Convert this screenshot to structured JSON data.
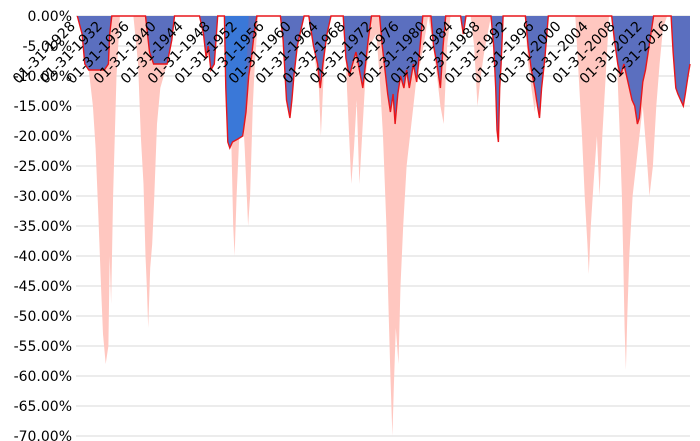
{
  "chart_data": {
    "type": "area",
    "title": "",
    "xlabel": "",
    "ylabel": "",
    "y_tick_labels": [
      "0.00%",
      "-5.00%",
      "-10.00%",
      "-15.00%",
      "-20.00%",
      "-25.00%",
      "-30.00%",
      "-35.00%",
      "-40.00%",
      "-45.00%",
      "-50.00%",
      "-55.00%",
      "-60.00%",
      "-65.00%",
      "-70.00%"
    ],
    "y_ticks": [
      0,
      -5,
      -10,
      -15,
      -20,
      -25,
      -30,
      -35,
      -40,
      -45,
      -50,
      -55,
      -60,
      -65,
      -70
    ],
    "ylim": [
      -70,
      0
    ],
    "xlim": [
      1928.0,
      2019.0
    ],
    "grid": true,
    "legend": "none",
    "x_tick_labels": [
      "01-31-1928",
      "01-31-1932",
      "01-31-1936",
      "01-31-1940",
      "01-31-1944",
      "01-31-1948",
      "01-31-1952",
      "01-31-1956",
      "01-31-1960",
      "01-31-1964",
      "01-31-1968",
      "01-31-1972",
      "01-31-1976",
      "01-31-1980",
      "01-31-1984",
      "01-31-1988",
      "01-31-1992",
      "01-31-1996",
      "01-31-2000",
      "01-31-2004",
      "01-31-2008",
      "01-31-2012",
      "01-31-2016"
    ],
    "x_tick_years": [
      1928,
      1932,
      1936,
      1940,
      1944,
      1948,
      1952,
      1956,
      1960,
      1964,
      1968,
      1972,
      1976,
      1980,
      1984,
      1988,
      1992,
      1996,
      2000,
      2004,
      2008,
      2012,
      2016
    ],
    "series": [
      {
        "color": "#ffc7c0",
        "points": [
          [
            1928.5,
            0
          ],
          [
            1929.2,
            0
          ],
          [
            1929.8,
            -8
          ],
          [
            1930.5,
            -15
          ],
          [
            1930.9,
            -22
          ],
          [
            1931.3,
            -33
          ],
          [
            1931.7,
            -45
          ],
          [
            1932.0,
            -53
          ],
          [
            1932.4,
            -58
          ],
          [
            1932.8,
            -55
          ],
          [
            1933.0,
            -40
          ],
          [
            1933.2,
            -48
          ],
          [
            1933.5,
            -30
          ],
          [
            1934.0,
            -10
          ],
          [
            1934.5,
            0
          ],
          [
            1936.5,
            0
          ],
          [
            1937.2,
            -8
          ],
          [
            1937.6,
            -20
          ],
          [
            1938.0,
            -28
          ],
          [
            1938.3,
            -40
          ],
          [
            1938.5,
            -45
          ],
          [
            1938.7,
            -52
          ],
          [
            1939.0,
            -42
          ],
          [
            1939.3,
            -38
          ],
          [
            1939.6,
            -30
          ],
          [
            1940.0,
            -18
          ],
          [
            1940.5,
            -12
          ],
          [
            1941.0,
            -10
          ],
          [
            1941.5,
            -8
          ],
          [
            1942.0,
            0
          ],
          [
            1950.0,
            0
          ],
          [
            1950.5,
            -5
          ],
          [
            1951.0,
            -20
          ],
          [
            1951.3,
            -35
          ],
          [
            1951.5,
            -40
          ],
          [
            1951.8,
            -30
          ],
          [
            1952.2,
            -20
          ],
          [
            1952.5,
            -12
          ],
          [
            1953.0,
            -22
          ],
          [
            1953.5,
            -35
          ],
          [
            1953.8,
            -30
          ],
          [
            1954.2,
            -15
          ],
          [
            1954.5,
            -8
          ],
          [
            1955.0,
            0
          ],
          [
            1958.2,
            0
          ],
          [
            1958.8,
            -5
          ],
          [
            1959.3,
            -10
          ],
          [
            1959.8,
            -3
          ],
          [
            1960.3,
            0
          ],
          [
            1963.0,
            0
          ],
          [
            1963.5,
            -8
          ],
          [
            1964.0,
            -12
          ],
          [
            1964.3,
            -20
          ],
          [
            1964.7,
            -10
          ],
          [
            1965.3,
            0
          ],
          [
            1967.6,
            0
          ],
          [
            1968.0,
            -8
          ],
          [
            1968.4,
            -18
          ],
          [
            1968.8,
            -28
          ],
          [
            1969.2,
            -22
          ],
          [
            1969.6,
            -14
          ],
          [
            1970.0,
            -28
          ],
          [
            1970.4,
            -20
          ],
          [
            1970.9,
            -10
          ],
          [
            1971.5,
            -5
          ],
          [
            1972.5,
            -3
          ],
          [
            1973.0,
            -10
          ],
          [
            1973.5,
            -20
          ],
          [
            1974.0,
            -35
          ],
          [
            1974.3,
            -48
          ],
          [
            1974.6,
            -60
          ],
          [
            1974.9,
            -70
          ],
          [
            1975.1,
            -62
          ],
          [
            1975.4,
            -52
          ],
          [
            1975.8,
            -58
          ],
          [
            1976.1,
            -45
          ],
          [
            1976.5,
            -35
          ],
          [
            1977.0,
            -25
          ],
          [
            1977.5,
            -20
          ],
          [
            1978.0,
            -15
          ],
          [
            1978.5,
            -10
          ],
          [
            1979.0,
            -8
          ],
          [
            1979.5,
            -5
          ],
          [
            1980.2,
            0
          ],
          [
            1980.8,
            -4
          ],
          [
            1981.5,
            -10
          ],
          [
            1982.0,
            -15
          ],
          [
            1982.5,
            -18
          ],
          [
            1983.0,
            -5
          ],
          [
            1983.5,
            0
          ],
          [
            1986.5,
            0
          ],
          [
            1987.0,
            -5
          ],
          [
            1987.5,
            -15
          ],
          [
            1988.0,
            -10
          ],
          [
            1988.5,
            -6
          ],
          [
            1989.0,
            -3
          ],
          [
            1989.5,
            0
          ],
          [
            1990.0,
            -5
          ],
          [
            1990.3,
            -10
          ],
          [
            1990.6,
            -15
          ],
          [
            1990.9,
            -8
          ],
          [
            1991.3,
            0
          ],
          [
            1994.5,
            0
          ],
          [
            1995.0,
            -8
          ],
          [
            1995.5,
            -12
          ],
          [
            1996.0,
            -16
          ],
          [
            1996.5,
            -10
          ],
          [
            1997.0,
            0
          ],
          [
            2002.0,
            0
          ],
          [
            2002.5,
            -10
          ],
          [
            2003.0,
            -20
          ],
          [
            2003.4,
            -30
          ],
          [
            2003.8,
            -38
          ],
          [
            2004.0,
            -43
          ],
          [
            2004.3,
            -35
          ],
          [
            2004.7,
            -28
          ],
          [
            2005.2,
            -20
          ],
          [
            2005.6,
            -30
          ],
          [
            2006.0,
            -20
          ],
          [
            2006.5,
            -10
          ],
          [
            2007.0,
            0
          ],
          [
            2007.8,
            0
          ],
          [
            2008.2,
            -8
          ],
          [
            2008.6,
            -20
          ],
          [
            2008.9,
            -30
          ],
          [
            2009.1,
            -40
          ],
          [
            2009.3,
            -52
          ],
          [
            2009.5,
            -59
          ],
          [
            2009.7,
            -50
          ],
          [
            2010.0,
            -40
          ],
          [
            2010.5,
            -30
          ],
          [
            2011.0,
            -25
          ],
          [
            2011.5,
            -20
          ],
          [
            2012.0,
            -15
          ],
          [
            2012.5,
            -22
          ],
          [
            2013.0,
            -30
          ],
          [
            2013.5,
            -25
          ],
          [
            2014.0,
            -15
          ],
          [
            2014.5,
            -8
          ],
          [
            2015.0,
            -2
          ],
          [
            2015.6,
            0
          ]
        ]
      },
      {
        "color": "#5b6fbf",
        "points": [
          [
            1928.2,
            0
          ],
          [
            1928.9,
            -3
          ],
          [
            1929.3,
            -8
          ],
          [
            1929.9,
            -9
          ],
          [
            1932.2,
            -9
          ],
          [
            1932.8,
            -8
          ],
          [
            1933.0,
            -3
          ],
          [
            1933.3,
            0
          ],
          [
            1938.3,
            0
          ],
          [
            1938.9,
            -6
          ],
          [
            1939.5,
            -8
          ],
          [
            1940.4,
            -8
          ],
          [
            1941.5,
            -8
          ],
          [
            1942.2,
            -4
          ],
          [
            1942.6,
            0
          ],
          [
            1946.3,
            0
          ],
          [
            1946.9,
            -3
          ],
          [
            1947.3,
            -7
          ],
          [
            1947.6,
            -5
          ],
          [
            1948.0,
            -9
          ],
          [
            1948.5,
            -8
          ],
          [
            1949.0,
            0
          ],
          [
            1950.0,
            0
          ],
          [
            1950.2,
            -12
          ],
          [
            1950.5,
            -21
          ],
          [
            1950.8,
            -22
          ],
          [
            1951.2,
            -21
          ],
          [
            1952.0,
            -20.5
          ],
          [
            1952.7,
            -20
          ],
          [
            1953.2,
            -16
          ],
          [
            1953.6,
            -10
          ],
          [
            1954.0,
            -7
          ],
          [
            1954.4,
            -3
          ],
          [
            1954.8,
            0
          ],
          [
            1958.3,
            0
          ],
          [
            1958.7,
            -4
          ],
          [
            1959.2,
            -14
          ],
          [
            1959.7,
            -17
          ],
          [
            1960.0,
            -14
          ],
          [
            1960.3,
            -10
          ],
          [
            1960.8,
            -5
          ],
          [
            1961.2,
            -3
          ],
          [
            1961.8,
            0
          ],
          [
            1962.5,
            0
          ],
          [
            1963.2,
            -5
          ],
          [
            1963.8,
            -8
          ],
          [
            1964.2,
            -12
          ],
          [
            1964.6,
            -8
          ],
          [
            1965.2,
            -3
          ],
          [
            1965.8,
            0
          ],
          [
            1967.6,
            0
          ],
          [
            1968.0,
            -7
          ],
          [
            1968.5,
            -10
          ],
          [
            1969.0,
            -8
          ],
          [
            1969.5,
            -6
          ],
          [
            1970.0,
            -9
          ],
          [
            1970.5,
            -12
          ],
          [
            1970.9,
            -8
          ],
          [
            1971.3,
            -4
          ],
          [
            1971.8,
            0
          ],
          [
            1973.0,
            0
          ],
          [
            1973.4,
            -5
          ],
          [
            1973.8,
            -9
          ],
          [
            1974.2,
            -13
          ],
          [
            1974.6,
            -16
          ],
          [
            1975.0,
            -13
          ],
          [
            1975.3,
            -18
          ],
          [
            1975.7,
            -13
          ],
          [
            1976.1,
            -10
          ],
          [
            1976.6,
            -12
          ],
          [
            1977.0,
            -9
          ],
          [
            1977.4,
            -12
          ],
          [
            1978.0,
            -8
          ],
          [
            1978.5,
            -11
          ],
          [
            1979.0,
            -5
          ],
          [
            1979.4,
            0
          ],
          [
            1980.6,
            0
          ],
          [
            1981.0,
            -5
          ],
          [
            1981.5,
            -8
          ],
          [
            1982.0,
            -12
          ],
          [
            1982.4,
            -5
          ],
          [
            1982.8,
            0
          ],
          [
            1985.0,
            0
          ],
          [
            1985.4,
            -3
          ],
          [
            1985.8,
            0
          ],
          [
            1989.5,
            0
          ],
          [
            1989.9,
            -5
          ],
          [
            1990.2,
            -12
          ],
          [
            1990.4,
            -19
          ],
          [
            1990.6,
            -21
          ],
          [
            1990.8,
            -12
          ],
          [
            1991.0,
            -8
          ],
          [
            1991.3,
            0
          ],
          [
            1994.6,
            0
          ],
          [
            1995.0,
            -5
          ],
          [
            1995.5,
            -9
          ],
          [
            1996.0,
            -12
          ],
          [
            1996.4,
            -15
          ],
          [
            1996.7,
            -17
          ],
          [
            1997.0,
            -12
          ],
          [
            1997.5,
            -7
          ],
          [
            1998.0,
            0
          ],
          [
            2007.4,
            0
          ],
          [
            2007.8,
            -4
          ],
          [
            2008.3,
            -8
          ],
          [
            2008.7,
            -10
          ],
          [
            2009.2,
            -8
          ],
          [
            2009.6,
            -10
          ],
          [
            2010.0,
            -12
          ],
          [
            2010.4,
            -14
          ],
          [
            2010.8,
            -15
          ],
          [
            2011.2,
            -18
          ],
          [
            2011.5,
            -17
          ],
          [
            2012.0,
            -11
          ],
          [
            2012.4,
            -9
          ],
          [
            2012.8,
            -6
          ],
          [
            2013.2,
            -3
          ],
          [
            2013.6,
            0
          ],
          [
            2016.2,
            0
          ],
          [
            2016.5,
            -6
          ],
          [
            2016.9,
            -12
          ],
          [
            2017.2,
            -13
          ],
          [
            2017.6,
            -14
          ],
          [
            2018.0,
            -15
          ],
          [
            2018.3,
            -13
          ],
          [
            2018.7,
            -10
          ],
          [
            2019.0,
            -8
          ]
        ]
      },
      {
        "color": "#3a78d8",
        "points": [
          [
            1950.0,
            0
          ],
          [
            1950.2,
            -12
          ],
          [
            1950.5,
            -21
          ],
          [
            1950.8,
            -22
          ],
          [
            1951.2,
            -21
          ],
          [
            1952.0,
            -20.5
          ],
          [
            1952.7,
            -20
          ],
          [
            1953.0,
            -15
          ],
          [
            1953.3,
            -8
          ],
          [
            1953.6,
            0
          ]
        ]
      }
    ]
  }
}
